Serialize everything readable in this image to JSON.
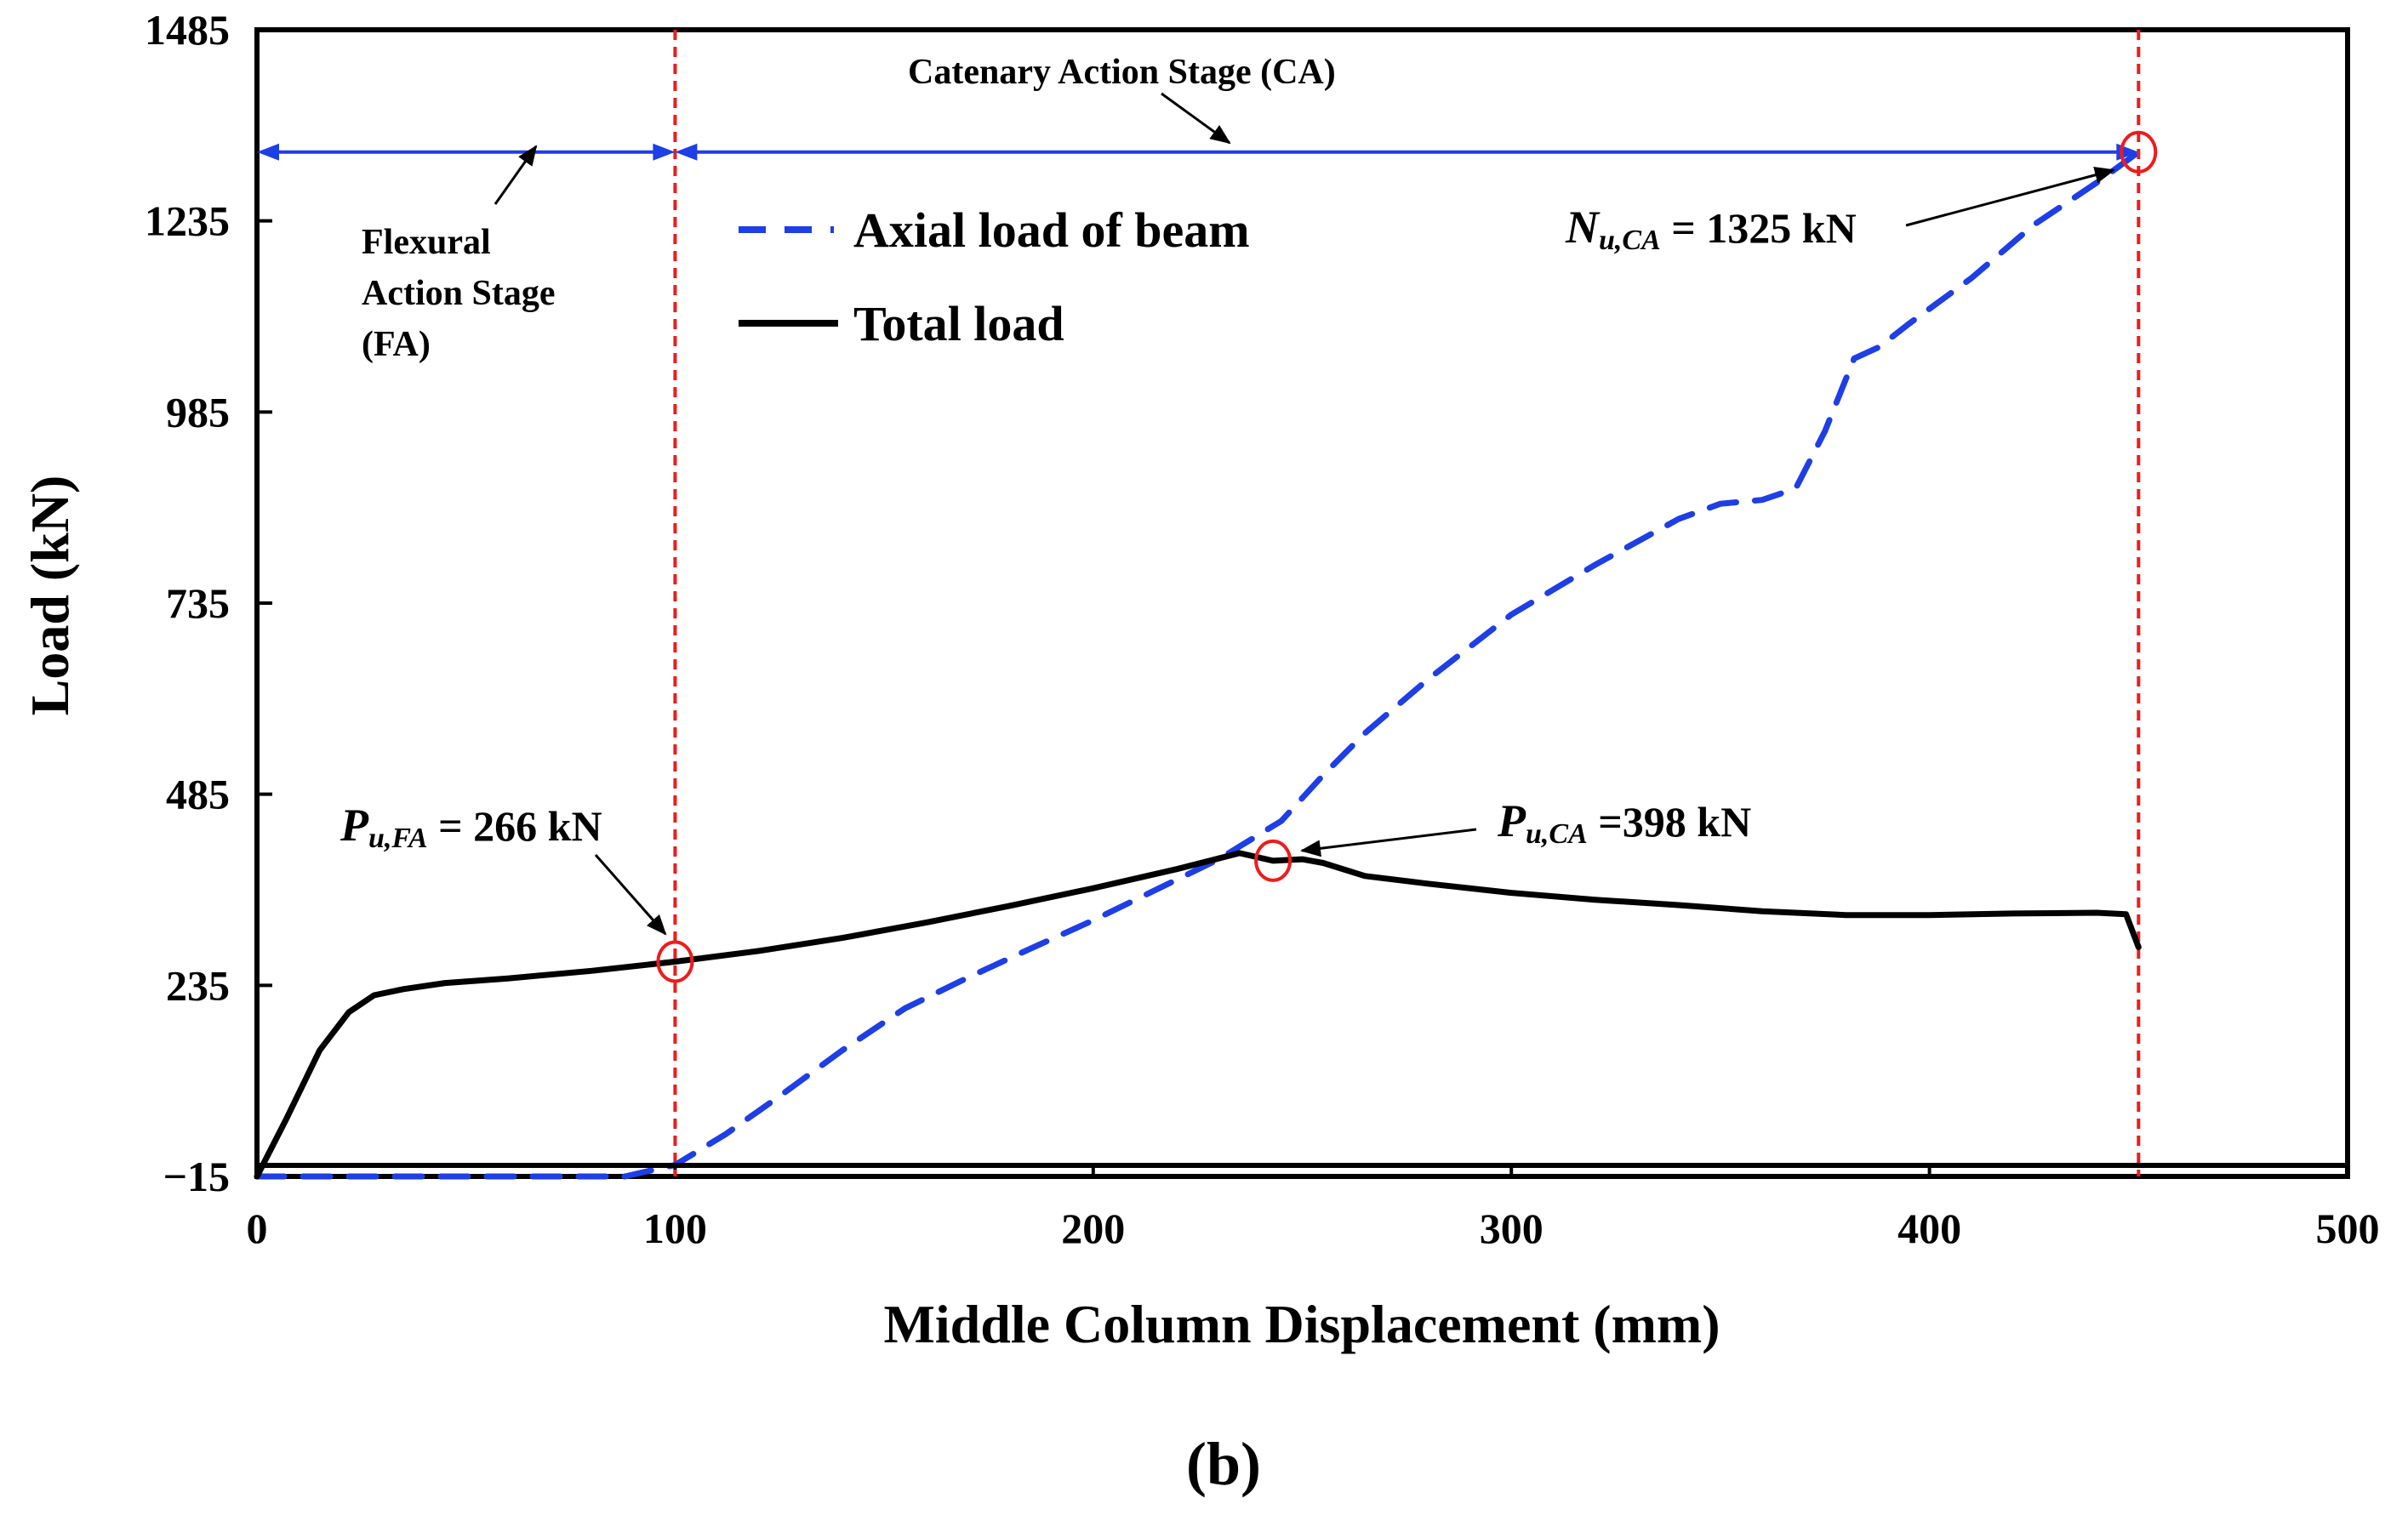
{
  "chart_data": {
    "type": "line",
    "caption": "(b)",
    "xlabel": "Middle Column Displacement (mm)",
    "ylabel": "Load (kN)",
    "xlim": [
      0,
      500
    ],
    "ylim": [
      -15,
      1485
    ],
    "x_ticks": [
      0,
      100,
      200,
      300,
      400,
      500
    ],
    "y_ticks": [
      -15,
      235,
      485,
      735,
      985,
      1235,
      1485
    ],
    "x_tick_labels": [
      "0",
      "100",
      "200",
      "300",
      "400",
      "500"
    ],
    "y_tick_labels": [
      "−15",
      "235",
      "485",
      "735",
      "985",
      "1235",
      "1485"
    ],
    "grid": false,
    "legend_position": "top-left",
    "series": [
      {
        "name": "Axial load of beam",
        "style": "dashed",
        "color": "#1e3ee6",
        "x": [
          0,
          80,
          88,
          100,
          112,
          125,
          140,
          155,
          170,
          185,
          200,
          215,
          230,
          245,
          255,
          265,
          280,
          300,
          320,
          340,
          350,
          360,
          368,
          375,
          382,
          388,
          395,
          410,
          425,
          440,
          450
        ],
        "y": [
          -15,
          -15,
          -15,
          0,
          40,
          90,
          150,
          205,
          245,
          283,
          320,
          360,
          400,
          450,
          510,
          565,
          635,
          720,
          785,
          845,
          865,
          870,
          885,
          960,
          1055,
          1070,
          1100,
          1160,
          1230,
          1285,
          1325
        ]
      },
      {
        "name": "Total load",
        "style": "solid",
        "color": "#000000",
        "x": [
          0,
          7,
          15,
          22,
          28,
          35,
          45,
          60,
          80,
          100,
          120,
          140,
          160,
          180,
          200,
          220,
          235,
          243,
          250,
          255,
          265,
          280,
          300,
          320,
          340,
          360,
          380,
          400,
          420,
          440,
          447,
          450
        ],
        "y": [
          -15,
          60,
          150,
          200,
          222,
          230,
          238,
          244,
          254,
          266,
          280,
          297,
          317,
          339,
          362,
          387,
          408,
          398,
          400,
          395,
          378,
          368,
          356,
          347,
          340,
          332,
          327,
          327,
          329,
          330,
          328,
          285
        ]
      }
    ],
    "stage_boundaries": [
      100,
      450
    ],
    "stage_arrow_y": 1325,
    "annotations": {
      "flexural_stage": [
        "Flexural",
        "Action Stage",
        "(FA)"
      ],
      "catenary_stage": "Catenary  Action Stage (CA)",
      "p_fa": {
        "symbol": "P",
        "sub": "u,FA",
        "text": " = 266 kN",
        "x": 100,
        "y": 266
      },
      "p_ca": {
        "symbol": "P",
        "sub": "u,CA",
        "text": " =398 kN",
        "x": 243,
        "y": 398
      },
      "n_ca": {
        "symbol": "N",
        "sub": "u,CA",
        "text": " = 1325 kN",
        "x": 450,
        "y": 1325
      }
    }
  },
  "colors": {
    "axial": "#1e3ee6",
    "total": "#000000",
    "stage_line": "#ee1c1c",
    "arrow": "#1e3ee6",
    "marker": "#ee1c1c"
  }
}
